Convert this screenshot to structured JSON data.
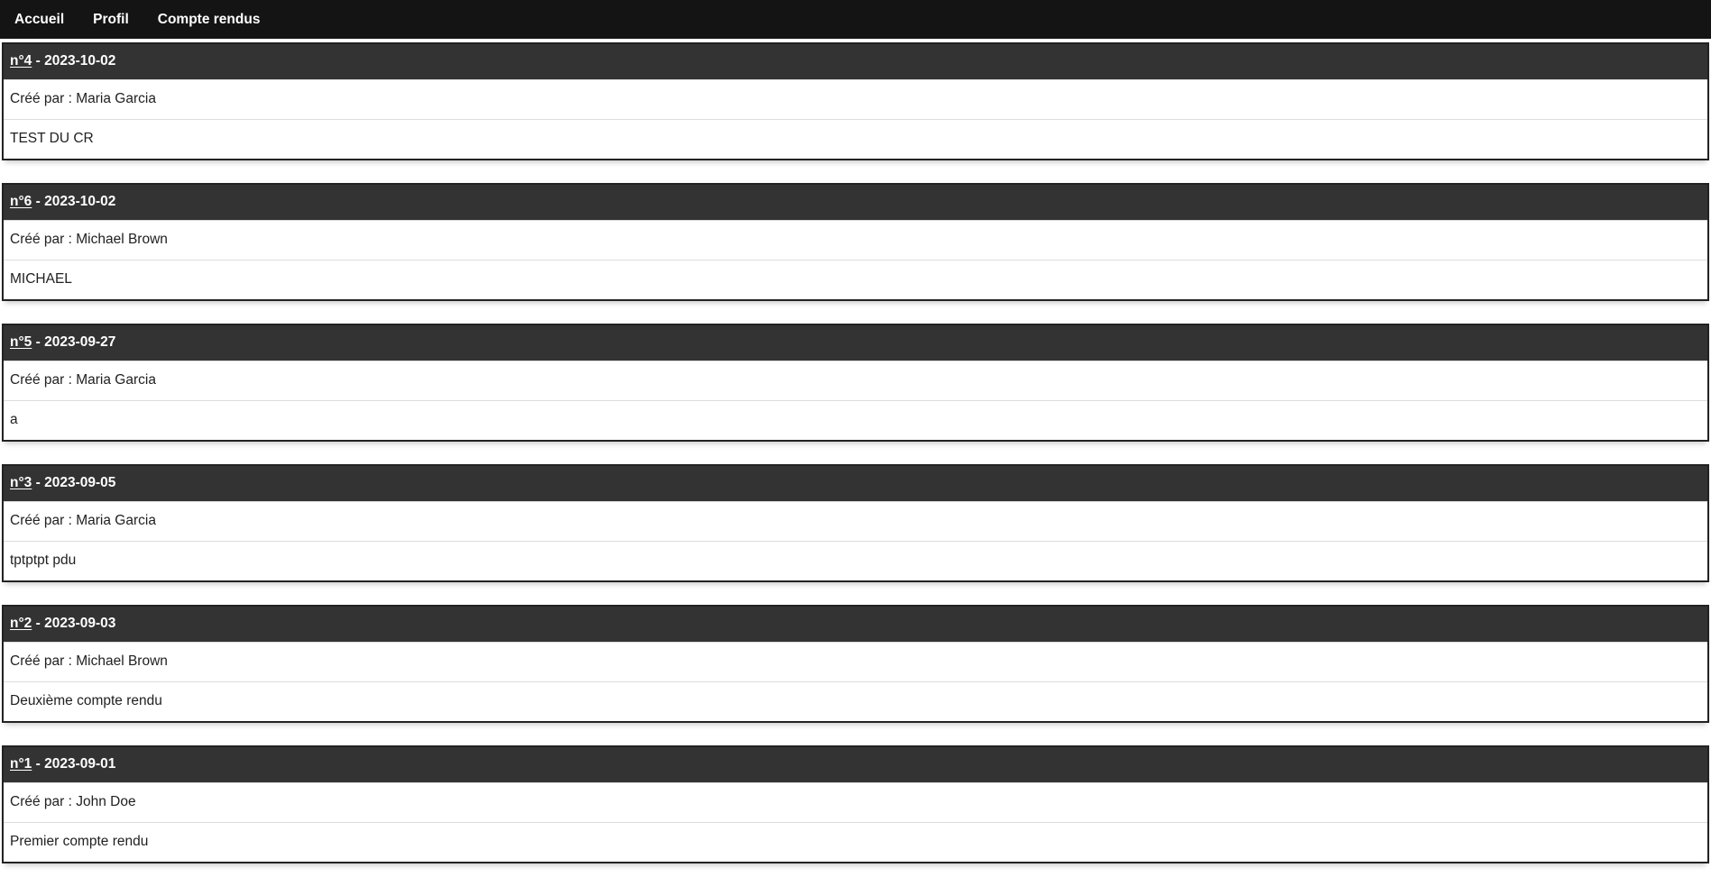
{
  "navbar": {
    "items": [
      {
        "id": "accueil",
        "label": "Accueil"
      },
      {
        "id": "profil",
        "label": "Profil"
      },
      {
        "id": "compte-rendus",
        "label": "Compte rendus"
      }
    ]
  },
  "labels": {
    "created_by": "Créé par :",
    "header_separator": "-"
  },
  "reports": [
    {
      "number": "n°4",
      "date": "2023-10-02",
      "author": "Maria Garcia",
      "content": "TEST DU CR"
    },
    {
      "number": "n°6",
      "date": "2023-10-02",
      "author": "Michael Brown",
      "content": "MICHAEL"
    },
    {
      "number": "n°5",
      "date": "2023-09-27",
      "author": "Maria Garcia",
      "content": "a"
    },
    {
      "number": "n°3",
      "date": "2023-09-05",
      "author": "Maria Garcia",
      "content": "tptptpt pdu"
    },
    {
      "number": "n°2",
      "date": "2023-09-03",
      "author": "Michael Brown",
      "content": "Deuxième compte rendu"
    },
    {
      "number": "n°1",
      "date": "2023-09-01",
      "author": "John Doe",
      "content": "Premier compte rendu"
    }
  ],
  "colors": {
    "navbar_bg": "#141414",
    "card_header_bg": "#333333",
    "card_border": "#222222",
    "row_separator": "#dcdcdc",
    "row_text": "#212121",
    "header_text": "#ffffff",
    "page_bg": "#ffffff"
  }
}
